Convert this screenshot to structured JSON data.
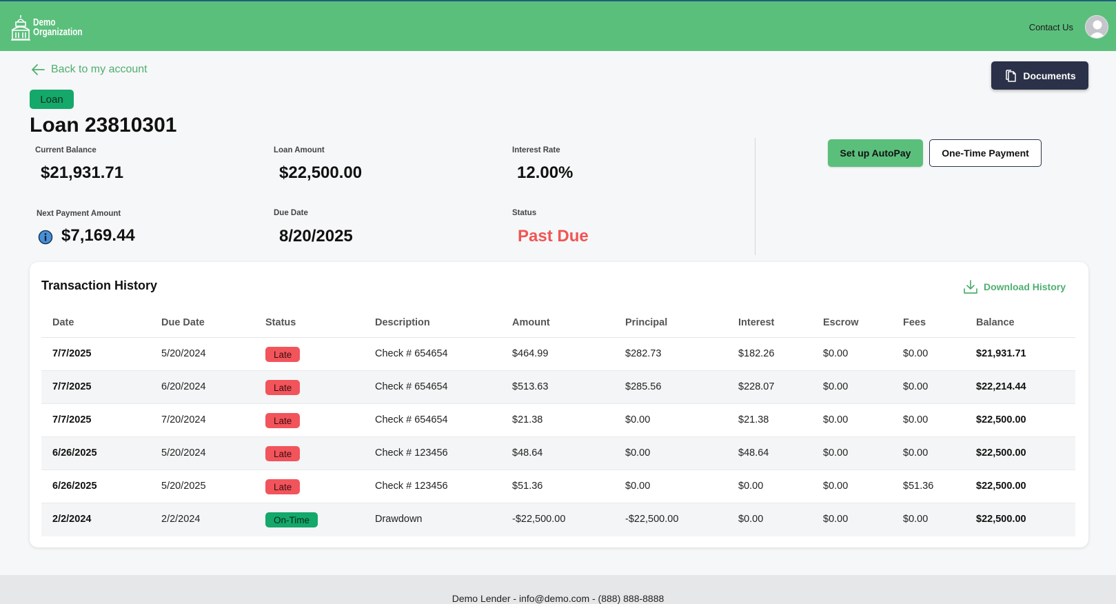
{
  "header": {
    "logo_line1": "Demo",
    "logo_line2": "Organization",
    "contact_label": "Contact Us"
  },
  "nav": {
    "back_label": "Back to my account"
  },
  "actions": {
    "documents_label": "Documents",
    "autopay_label": "Set up AutoPay",
    "onetime_label": "One-Time Payment"
  },
  "loan": {
    "badge": "Loan",
    "title": "Loan 23810301",
    "current_balance_label": "Current Balance",
    "current_balance": "$21,931.71",
    "loan_amount_label": "Loan Amount",
    "loan_amount": "$22,500.00",
    "interest_rate_label": "Interest Rate",
    "interest_rate": "12.00%",
    "next_payment_label": "Next Payment Amount",
    "next_payment": "$7,169.44",
    "due_date_label": "Due Date",
    "due_date": "8/20/2025",
    "status_label": "Status",
    "status": "Past Due"
  },
  "history": {
    "title": "Transaction History",
    "download_label": "Download History",
    "columns": [
      "Date",
      "Due Date",
      "Status",
      "Description",
      "Amount",
      "Principal",
      "Interest",
      "Escrow",
      "Fees",
      "Balance"
    ],
    "rows": [
      [
        "7/7/2025",
        "5/20/2024",
        "Late",
        "Check # 654654",
        "$464.99",
        "$282.73",
        "$182.26",
        "$0.00",
        "$0.00",
        "$21,931.71"
      ],
      [
        "7/7/2025",
        "6/20/2024",
        "Late",
        "Check # 654654",
        "$513.63",
        "$285.56",
        "$228.07",
        "$0.00",
        "$0.00",
        "$22,214.44"
      ],
      [
        "7/7/2025",
        "7/20/2024",
        "Late",
        "Check # 654654",
        "$21.38",
        "$0.00",
        "$21.38",
        "$0.00",
        "$0.00",
        "$22,500.00"
      ],
      [
        "6/26/2025",
        "5/20/2024",
        "Late",
        "Check # 123456",
        "$48.64",
        "$0.00",
        "$48.64",
        "$0.00",
        "$0.00",
        "$22,500.00"
      ],
      [
        "6/26/2025",
        "5/20/2025",
        "Late",
        "Check # 123456",
        "$51.36",
        "$0.00",
        "$0.00",
        "$0.00",
        "$51.36",
        "$22,500.00"
      ],
      [
        "2/2/2024",
        "2/2/2024",
        "On-Time",
        "Drawdown",
        "-$22,500.00",
        "-$22,500.00",
        "$0.00",
        "$0.00",
        "$0.00",
        "$22,500.00"
      ]
    ]
  },
  "footer": {
    "text": "Demo Lender - info@demo.com - (888) 888-8888"
  },
  "colors": {
    "brand_green": "#5bbf7c",
    "dark_navy": "#2b3148",
    "late_red": "#f2545b",
    "ontime_green": "#14a86a",
    "past_due_red": "#f05555"
  },
  "icons": [
    "building-logo-icon",
    "user-avatar-icon",
    "arrow-left-icon",
    "documents-icon",
    "info-icon",
    "download-icon"
  ]
}
